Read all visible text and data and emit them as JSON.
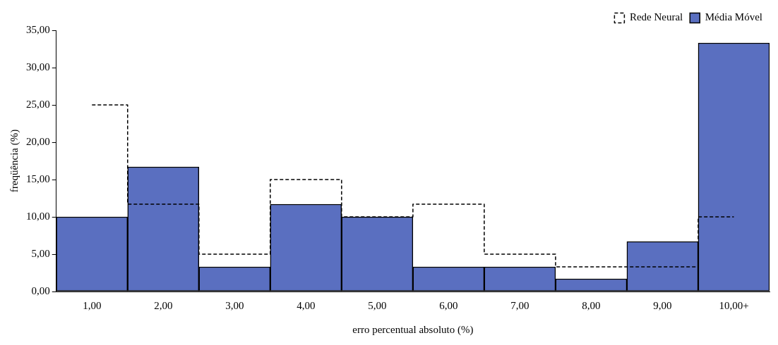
{
  "chart_data": {
    "type": "bar",
    "xlabel": "erro percentual absoluto (%)",
    "ylabel": "freqüência (%)",
    "categories": [
      "1,00",
      "2,00",
      "3,00",
      "4,00",
      "5,00",
      "6,00",
      "7,00",
      "8,00",
      "9,00",
      "10,00+"
    ],
    "series": [
      {
        "name": "Rede Neural",
        "type": "step",
        "color": "#000000",
        "line_style": "dashed",
        "values": [
          25.0,
          11.7,
          5.0,
          15.0,
          10.0,
          11.7,
          5.0,
          3.3,
          3.3,
          10.0
        ]
      },
      {
        "name": "Média Móvel",
        "color": "#5a6fc0",
        "values": [
          10.0,
          16.7,
          3.3,
          11.7,
          10.0,
          3.3,
          3.3,
          1.7,
          6.7,
          33.3
        ]
      }
    ],
    "ylim": [
      0,
      35
    ],
    "yticks": [
      {
        "value": 0,
        "label": "0,00"
      },
      {
        "value": 5,
        "label": "5,00"
      },
      {
        "value": 10,
        "label": "10,00"
      },
      {
        "value": 15,
        "label": "15,00"
      },
      {
        "value": 20,
        "label": "20,00"
      },
      {
        "value": 25,
        "label": "25,00"
      },
      {
        "value": 30,
        "label": "30,00"
      },
      {
        "value": 35,
        "label": "35,00"
      }
    ],
    "grid": false,
    "legend": "top right"
  }
}
